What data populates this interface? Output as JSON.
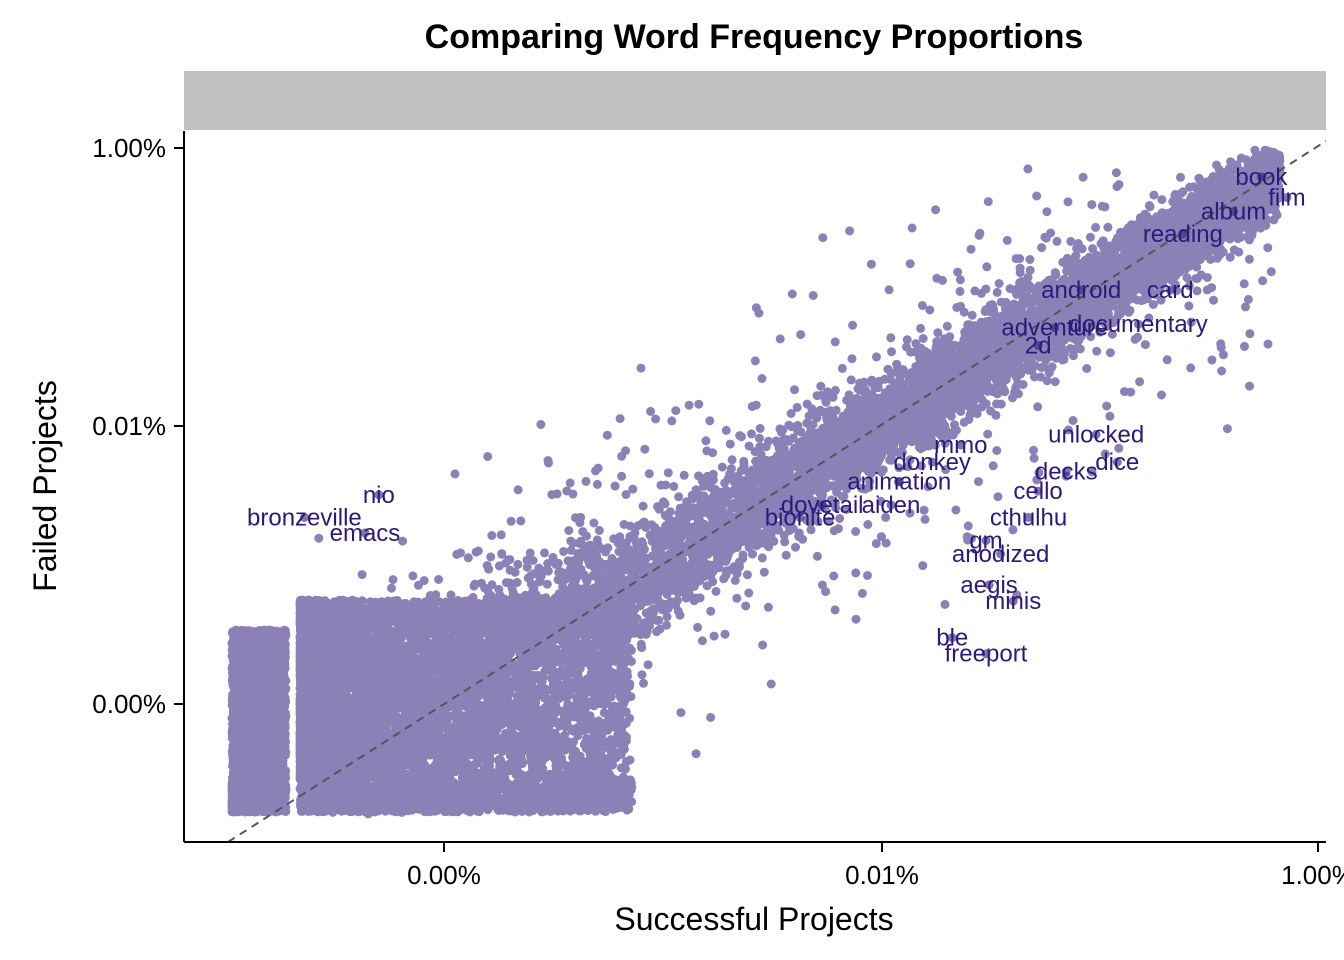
{
  "chart_data": {
    "type": "scatter",
    "title": "Comparing Word Frequency Proportions",
    "xlabel": "Successful Projects",
    "ylabel": "Failed Projects",
    "x_scale": "log10",
    "y_scale": "log10",
    "x_ticks": [
      {
        "value": 1e-05,
        "label": "0.00%"
      },
      {
        "value": 0.0001,
        "label": "0.01%"
      },
      {
        "value": 0.01,
        "label": "1.00%"
      }
    ],
    "y_ticks": [
      {
        "value": 1e-06,
        "label": "0.00%"
      },
      {
        "value": 0.0001,
        "label": "0.01%"
      },
      {
        "value": 0.01,
        "label": "1.00%"
      }
    ],
    "reference_line": "y = x",
    "facet_strip_label": "",
    "colors": {
      "point": "#2b1a7a",
      "label": "#2b1a7a",
      "reference_line": "#555555",
      "strip": "#c0c0c0",
      "axis": "#000000"
    },
    "labeled_words": [
      {
        "word": "book",
        "x": 0.0055,
        "y": 0.0062
      },
      {
        "word": "film",
        "x": 0.0072,
        "y": 0.0044
      },
      {
        "word": "album",
        "x": 0.0041,
        "y": 0.0035
      },
      {
        "word": "reading",
        "x": 0.0024,
        "y": 0.0024
      },
      {
        "word": "android",
        "x": 0.00082,
        "y": 0.00095
      },
      {
        "word": "card",
        "x": 0.0021,
        "y": 0.00095
      },
      {
        "word": "adventure",
        "x": 0.00062,
        "y": 0.00051
      },
      {
        "word": "2d",
        "x": 0.00052,
        "y": 0.00038
      },
      {
        "word": "documentary",
        "x": 0.0015,
        "y": 0.00054
      },
      {
        "word": "unlocked",
        "x": 0.00096,
        "y": 8.7e-05
      },
      {
        "word": "dice",
        "x": 0.0012,
        "y": 5.5e-05
      },
      {
        "word": "decks",
        "x": 0.0007,
        "y": 4.7e-05
      },
      {
        "word": "mmo",
        "x": 0.00023,
        "y": 7.3e-05
      },
      {
        "word": "donkey",
        "x": 0.00017,
        "y": 5.5e-05
      },
      {
        "word": "animation",
        "x": 0.00012,
        "y": 4e-05
      },
      {
        "word": "cello",
        "x": 0.00052,
        "y": 3.4e-05
      },
      {
        "word": "dovetail",
        "x": 7.3e-05,
        "y": 2.7e-05
      },
      {
        "word": "aiden",
        "x": 0.00011,
        "y": 2.7e-05
      },
      {
        "word": "cthulhu",
        "x": 0.00047,
        "y": 2.2e-05
      },
      {
        "word": "nio",
        "x": 7.1e-06,
        "y": 3.2e-05
      },
      {
        "word": "bronzeville",
        "x": 4.8e-06,
        "y": 2.2e-05
      },
      {
        "word": "bionite",
        "x": 6.5e-05,
        "y": 2.2e-05
      },
      {
        "word": "emacs",
        "x": 6.6e-06,
        "y": 1.7e-05
      },
      {
        "word": "gm",
        "x": 0.0003,
        "y": 1.5e-05
      },
      {
        "word": "anodized",
        "x": 0.00035,
        "y": 1.2e-05
      },
      {
        "word": "aegis",
        "x": 0.00031,
        "y": 7.2e-06
      },
      {
        "word": "minis",
        "x": 0.0004,
        "y": 5.5e-06
      },
      {
        "word": "freeport",
        "x": 0.0003,
        "y": 2.3e-06
      },
      {
        "word": "ble",
        "x": 0.00021,
        "y": 3e-06
      }
    ]
  }
}
